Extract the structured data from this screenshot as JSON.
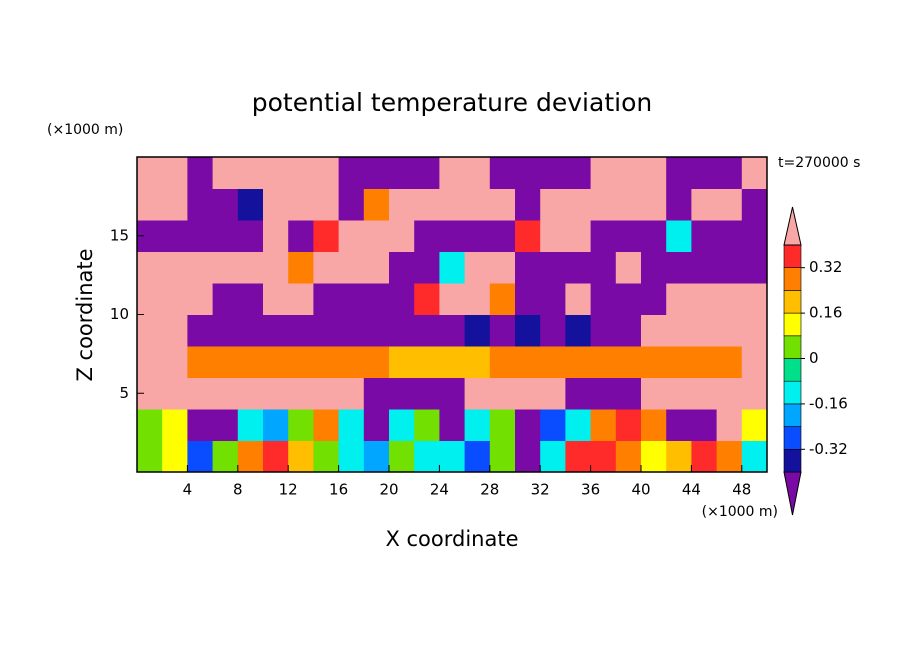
{
  "chart_data": {
    "type": "contour",
    "title": "potential temperature deviation",
    "xlabel": "X coordinate",
    "ylabel": "Z coordinate",
    "x_unit": "(×1000 m)",
    "y_unit": "(×1000 m)",
    "annotation": "t=270000 s",
    "xlim": [
      0,
      50
    ],
    "ylim": [
      0,
      20
    ],
    "xticks": [
      4,
      8,
      12,
      16,
      20,
      24,
      28,
      32,
      36,
      40,
      44,
      48
    ],
    "yticks": [
      5,
      10,
      15
    ],
    "levels": [
      -0.4,
      -0.32,
      -0.24,
      -0.16,
      -0.08,
      0,
      0.08,
      0.16,
      0.24,
      0.32,
      0.4
    ],
    "colors": [
      "#7a0aa6",
      "#14129c",
      "#0a4cff",
      "#00a6ff",
      "#00f0f0",
      "#00e08a",
      "#72e000",
      "#ffff00",
      "#ffbe00",
      "#ff8000",
      "#ff2a2a",
      "#f8a6a6"
    ],
    "colorbar_ticks": [
      -0.32,
      -0.16,
      0,
      0.16,
      0.32
    ],
    "x": [
      1,
      3,
      5,
      7,
      9,
      11,
      13,
      15,
      17,
      19,
      21,
      23,
      25,
      27,
      29,
      31,
      33,
      35,
      37,
      39,
      41,
      43,
      45,
      47,
      49
    ],
    "z": [
      1,
      3,
      5,
      7,
      9,
      11,
      13,
      15,
      17,
      19
    ],
    "values": [
      [
        0,
        0.1,
        -0.3,
        0.05,
        0.25,
        0.35,
        0.2,
        0,
        -0.1,
        -0.2,
        0,
        -0.1,
        -0.1,
        -0.25,
        0,
        -0.45,
        -0.1,
        0.35,
        0.35,
        0.25,
        0.1,
        0.2,
        0.35,
        0.25,
        -0.1
      ],
      [
        0.05,
        0.1,
        -0.45,
        -0.45,
        -0.1,
        -0.2,
        0.05,
        0.25,
        -0.1,
        -0.45,
        -0.1,
        0.05,
        -0.45,
        -0.1,
        0.05,
        -0.45,
        -0.3,
        -0.1,
        0.25,
        0.35,
        0.25,
        -0.45,
        -0.45,
        0.45,
        0.1
      ],
      [
        0.45,
        0.45,
        0.45,
        0.45,
        0.45,
        0.45,
        0.45,
        0.45,
        0.45,
        -0.45,
        -0.45,
        -0.45,
        -0.45,
        0.45,
        0.45,
        0.45,
        0.45,
        -0.45,
        -0.45,
        -0.45,
        0.45,
        0.45,
        0.45,
        0.45,
        0.45
      ],
      [
        0.45,
        0.45,
        0.25,
        0.25,
        0.25,
        0.25,
        0.25,
        0.25,
        0.25,
        0.25,
        0.2,
        0.2,
        0.2,
        0.2,
        0.25,
        0.25,
        0.25,
        0.25,
        0.25,
        0.25,
        0.25,
        0.25,
        0.25,
        0.25,
        0.45
      ],
      [
        0.45,
        0.45,
        -0.45,
        -0.45,
        -0.45,
        -0.45,
        -0.45,
        -0.45,
        -0.45,
        -0.45,
        -0.45,
        -0.45,
        -0.45,
        -0.35,
        -0.45,
        -0.35,
        -0.45,
        -0.35,
        -0.45,
        -0.45,
        0.45,
        0.45,
        0.45,
        0.45,
        0.45
      ],
      [
        0.45,
        0.45,
        0.45,
        -0.45,
        -0.45,
        0.45,
        0.45,
        -0.45,
        -0.45,
        -0.45,
        -0.45,
        0.35,
        0.45,
        0.45,
        0.25,
        -0.45,
        -0.45,
        0.45,
        -0.45,
        -0.45,
        -0.45,
        0.45,
        0.45,
        0.45,
        0.45
      ],
      [
        0.45,
        0.45,
        0.45,
        0.45,
        0.45,
        0.45,
        0.25,
        0.45,
        0.45,
        0.45,
        -0.45,
        -0.45,
        -0.1,
        0.45,
        0.45,
        -0.45,
        -0.45,
        -0.45,
        -0.45,
        0.45,
        -0.45,
        -0.45,
        -0.45,
        -0.45,
        -0.45
      ],
      [
        -0.45,
        -0.45,
        -0.45,
        -0.45,
        -0.45,
        0.45,
        -0.45,
        0.35,
        0.45,
        0.45,
        0.45,
        -0.45,
        -0.45,
        -0.45,
        -0.45,
        0.35,
        0.45,
        0.45,
        -0.45,
        -0.45,
        -0.45,
        -0.1,
        -0.45,
        -0.45,
        -0.45
      ],
      [
        0.45,
        0.45,
        -0.45,
        -0.45,
        -0.35,
        0.45,
        0.45,
        0.45,
        -0.45,
        0.25,
        0.45,
        0.45,
        0.45,
        0.45,
        0.45,
        -0.45,
        0.45,
        0.45,
        0.45,
        0.45,
        0.45,
        -0.45,
        0.45,
        0.45,
        -0.45
      ],
      [
        0.45,
        0.45,
        -0.45,
        0.45,
        0.45,
        0.45,
        0.45,
        0.45,
        -0.45,
        -0.45,
        -0.45,
        -0.45,
        0.45,
        0.45,
        -0.45,
        -0.45,
        -0.45,
        -0.45,
        0.45,
        0.45,
        0.45,
        -0.45,
        -0.45,
        -0.45,
        0.45
      ]
    ]
  }
}
